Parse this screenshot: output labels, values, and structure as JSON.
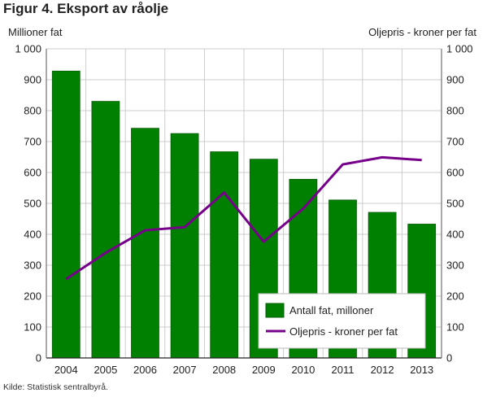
{
  "title": "Figur 4. Eksport av råolje",
  "source": "Kilde: Statistisk sentralbyrå.",
  "colors": {
    "bar": "#008000",
    "bar_stroke": "#0a5e0a",
    "line": "#77008a",
    "grid": "#cccccc"
  },
  "chart_data": {
    "type": "bar+line",
    "categories": [
      "2004",
      "2005",
      "2006",
      "2007",
      "2008",
      "2009",
      "2010",
      "2011",
      "2012",
      "2013"
    ],
    "series": [
      {
        "name": "Antall fat, milloner",
        "type": "bar",
        "axis": "left",
        "values": [
          928,
          830,
          743,
          726,
          667,
          643,
          578,
          511,
          471,
          433
        ]
      },
      {
        "name": "Oljepris -  kroner per fat",
        "type": "line",
        "axis": "right",
        "values": [
          255,
          340,
          413,
          423,
          535,
          376,
          483,
          626,
          649,
          640
        ]
      }
    ],
    "ylabel_left": "Millioner fat",
    "ylabel_right": "Oljepris -  kroner per fat",
    "ylim": [
      0,
      1000
    ],
    "yticks": [
      {
        "v": 0,
        "label": "0"
      },
      {
        "v": 100,
        "label": "100"
      },
      {
        "v": 200,
        "label": "200"
      },
      {
        "v": 300,
        "label": "300"
      },
      {
        "v": 400,
        "label": "400"
      },
      {
        "v": 500,
        "label": "500"
      },
      {
        "v": 600,
        "label": "600"
      },
      {
        "v": 700,
        "label": "700"
      },
      {
        "v": 800,
        "label": "800"
      },
      {
        "v": 900,
        "label": "900"
      },
      {
        "v": 1000,
        "label": "1 000"
      }
    ],
    "grid": true,
    "legend_position": "bottom-right"
  }
}
